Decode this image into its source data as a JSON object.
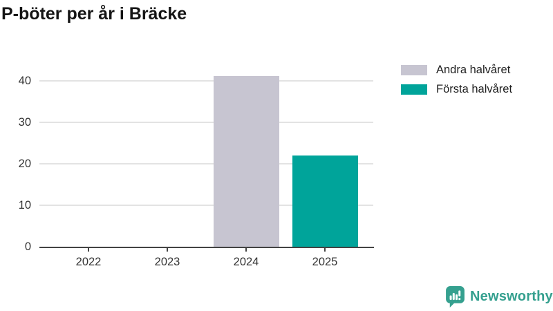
{
  "title": "P-böter per år i Bräcke",
  "chart_data": {
    "type": "bar",
    "stacked": true,
    "title": "P-böter per år i Bräcke",
    "categories": [
      "2022",
      "2023",
      "2024",
      "2025"
    ],
    "series": [
      {
        "name": "Andra halvåret",
        "color": "#c7c5d1",
        "values": [
          null,
          null,
          41,
          null
        ]
      },
      {
        "name": "Första halvåret",
        "color": "#00a49a",
        "values": [
          null,
          null,
          null,
          22
        ]
      }
    ],
    "xlabel": "",
    "ylabel": "",
    "ylim": [
      0,
      41
    ],
    "yticks": [
      0,
      10,
      20,
      30,
      40
    ],
    "grid": "horizontal",
    "legend_position": "top-right"
  },
  "legend": {
    "items": [
      {
        "label": "Andra halvåret",
        "color": "#c7c5d1"
      },
      {
        "label": "Första halvåret",
        "color": "#00a49a"
      }
    ]
  },
  "branding": {
    "name": "Newsworthy",
    "color": "#35a08f"
  }
}
